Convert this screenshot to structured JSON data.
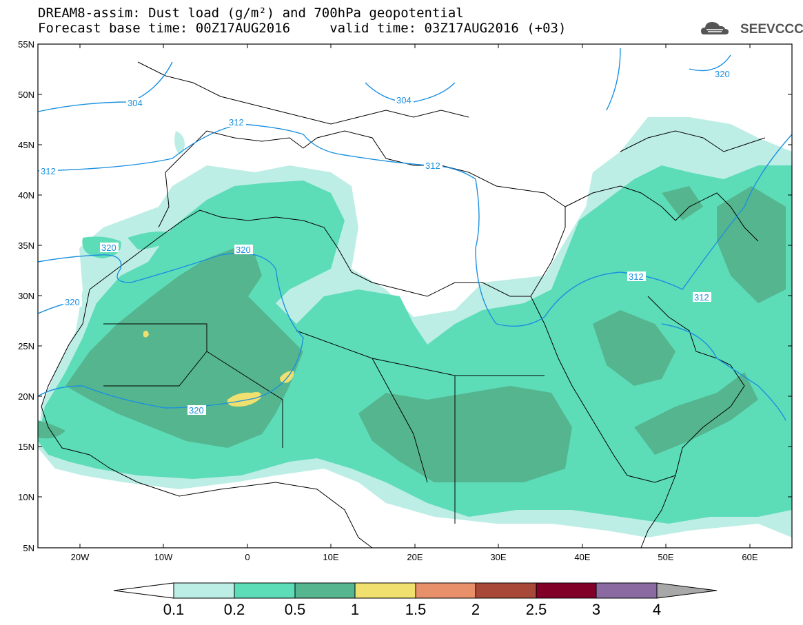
{
  "header": {
    "line1": "DREAM8-assim: Dust load (g/m²) and 700hPa geopotential",
    "line2": "Forecast base time: 00Z17AUG2016     valid time: 03Z17AUG2016 (+03)"
  },
  "logo": {
    "text": "SEEVCCC",
    "icon": "cloud-logo-icon"
  },
  "map": {
    "lon_range": [
      -25,
      65
    ],
    "lat_range": [
      5,
      55
    ],
    "lat_ticks": [
      "55N",
      "50N",
      "45N",
      "40N",
      "35N",
      "30N",
      "25N",
      "20N",
      "15N",
      "10N",
      "5N"
    ],
    "lon_ticks": [
      "20W",
      "10W",
      "0",
      "10E",
      "20E",
      "30E",
      "40E",
      "50E",
      "60E"
    ],
    "contour_labels": [
      "304",
      "304",
      "312",
      "312",
      "312",
      "312",
      "312",
      "320",
      "320",
      "320",
      "320",
      "320"
    ],
    "colors": {
      "coast": "#000000",
      "contour": "#1a90e0",
      "dust_0_1": "#bdeee6",
      "dust_0_2": "#5ddcb8",
      "dust_0_5": "#55b58e",
      "dust_1": "#f0e070"
    }
  },
  "colorbar": {
    "labels": [
      "0.1",
      "0.2",
      "0.5",
      "1",
      "1.5",
      "2",
      "2.5",
      "3",
      "4"
    ],
    "colors": [
      "#ffffff",
      "#bdeee6",
      "#5ddcb8",
      "#55b58e",
      "#f0e070",
      "#e8906a",
      "#a84838",
      "#800028",
      "#8a6aa0",
      "#a8a8a8"
    ]
  }
}
